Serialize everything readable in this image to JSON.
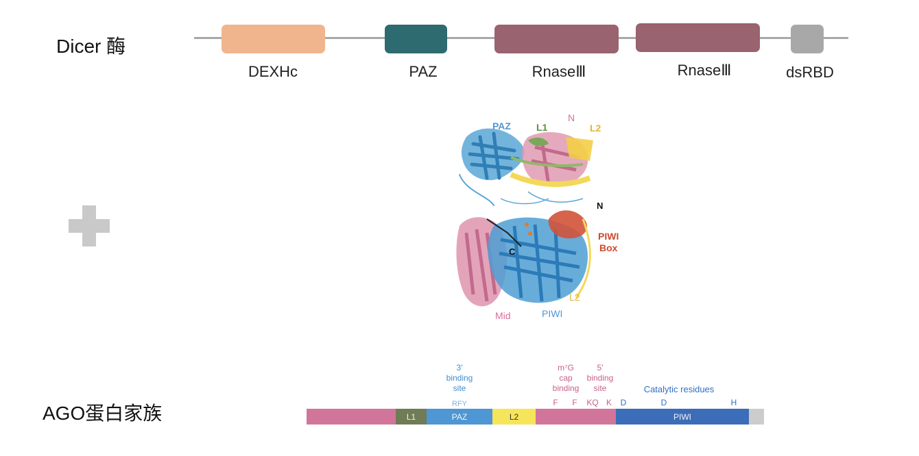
{
  "dicer": {
    "title": "Dicer 酶",
    "domains": [
      {
        "label": "DEXHc",
        "color": "#f0b58d"
      },
      {
        "label": "PAZ",
        "color": "#2e6b70"
      },
      {
        "label": "RnaseⅢ",
        "color": "#99636f"
      },
      {
        "label": "RnaseⅢ",
        "color": "#99636f"
      },
      {
        "label": "dsRBD",
        "color": "#a8a8a8"
      }
    ]
  },
  "plus_icon": "plus-icon",
  "structure": {
    "labels": {
      "paz": "PAZ",
      "l1": "L1",
      "n_top": "N",
      "l2_top": "L2",
      "n_mid": "N",
      "piwi_box_1": "PIWI",
      "piwi_box_2": "Box",
      "c": "C",
      "l2_bottom": "L2",
      "mid": "Mid",
      "piwi": "PIWI"
    }
  },
  "ago": {
    "title": "AGO蛋白家族",
    "segments": [
      {
        "label": "",
        "color": "#d1769a"
      },
      {
        "label": "L1",
        "color": "#6f7c55"
      },
      {
        "label": "PAZ",
        "color": "#4e97d4"
      },
      {
        "label": "L2",
        "color": "#f6e55a"
      },
      {
        "label": "",
        "color": "#d1769a"
      },
      {
        "label": "PIWI",
        "color": "#3b6db8"
      },
      {
        "label": "",
        "color": "#cccccc"
      }
    ],
    "annotations": {
      "binding3": [
        "3′",
        "binding",
        "site"
      ],
      "rfy": "RFY",
      "cap": [
        "m⁷G",
        "cap",
        "binding"
      ],
      "binding5": [
        "5′",
        "binding",
        "site"
      ],
      "catalytic": "Catalytic residues",
      "residues": [
        "F",
        "F",
        "KQ",
        "K",
        "D",
        "D",
        "H"
      ]
    }
  }
}
